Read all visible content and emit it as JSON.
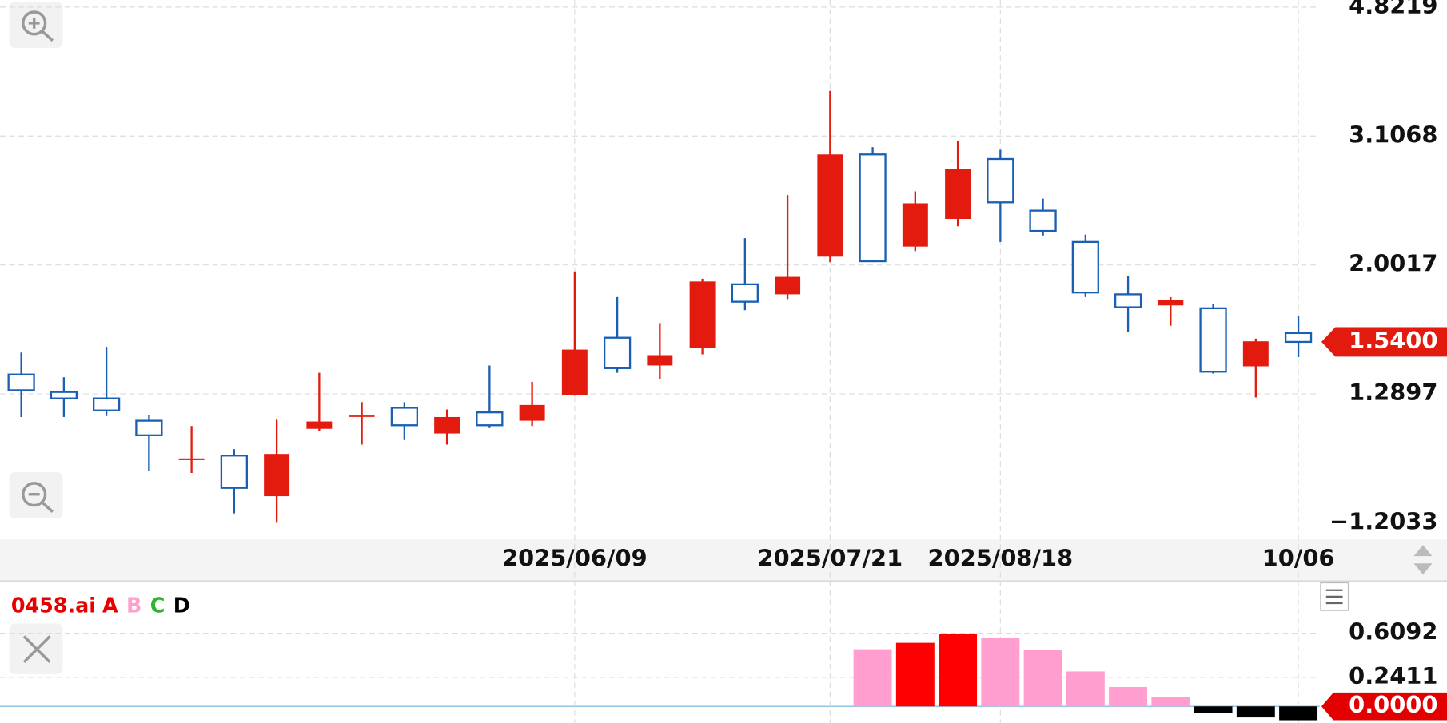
{
  "chart_data": [
    {
      "type": "candlestick",
      "categories": [
        null,
        null,
        null,
        null,
        null,
        null,
        null,
        null,
        null,
        null,
        null,
        null,
        null,
        "2025/06/09",
        null,
        null,
        null,
        null,
        null,
        "2025/07/21",
        null,
        null,
        null,
        "2025/08/18",
        null,
        null,
        null,
        null,
        null,
        null,
        "10/06"
      ],
      "open": [
        1.378,
        1.298,
        1.27,
        1.177,
        1.029,
        1.045,
        0.91,
        1.145,
        1.194,
        1.23,
        1.127,
        1.211,
        1.177,
        1.286,
        1.562,
        1.421,
        1.509,
        1.874,
        1.811,
        2.059,
        2.918,
        2.131,
        2.342,
        2.873,
        2.409,
        2.165,
        1.811,
        1.744,
        1.727,
        1.417,
        1.587
      ],
      "high": [
        1.485,
        1.365,
        1.514,
        1.2,
        1.156,
        1.068,
        1.181,
        1.386,
        1.254,
        1.254,
        1.223,
        1.421,
        1.344,
        1.958,
        1.794,
        1.642,
        1.91,
        2.193,
        2.541,
        3.624,
        2.992,
        2.573,
        3.058,
        2.964,
        2.51,
        2.22,
        1.928,
        1.794,
        1.754,
        1.557,
        1.684
      ],
      "low": [
        1.192,
        1.192,
        1.196,
        0.991,
        0.985,
        0.858,
        0.831,
        1.137,
        1.085,
        1.102,
        1.085,
        1.148,
        1.156,
        1.282,
        1.386,
        1.356,
        1.476,
        1.716,
        1.782,
        2.021,
        2.021,
        2.098,
        2.284,
        2.165,
        2.213,
        1.794,
        1.592,
        1.627,
        1.382,
        1.274,
        1.462
      ],
      "close": [
        1.306,
        1.27,
        1.219,
        1.12,
        1.035,
        0.936,
        1.051,
        1.174,
        1.198,
        1.159,
        1.192,
        1.159,
        1.242,
        1.5,
        1.408,
        1.472,
        1.892,
        1.766,
        1.922,
        2.918,
        2.027,
        2.47,
        2.774,
        2.478,
        2.248,
        1.822,
        1.733,
        1.777,
        1.391,
        1.543,
        1.54
      ],
      "up_color": "#e31b0e",
      "down_color": "#1a5fb4",
      "log_scale": true,
      "ylim": [
        0.79,
        4.94
      ],
      "yticks": [
        1.2897,
        2.0017,
        3.1068,
        4.8219
      ],
      "y_floor_label": "−1.2033",
      "grid": true,
      "last_price": {
        "value": 1.54,
        "label": "1.5400"
      }
    },
    {
      "type": "bar",
      "indicator": "0458.ai",
      "legend": [
        {
          "name": "A",
          "color": "#e60000"
        },
        {
          "name": "B",
          "color": "#ff9ecf"
        },
        {
          "name": "C",
          "color": "#2db52d"
        },
        {
          "name": "D",
          "color": "#000000"
        }
      ],
      "values": [
        null,
        null,
        null,
        null,
        null,
        null,
        null,
        null,
        null,
        null,
        null,
        null,
        null,
        null,
        null,
        null,
        null,
        null,
        null,
        null,
        0.476,
        0.529,
        0.606,
        0.568,
        0.468,
        0.291,
        0.161,
        0.077,
        -0.054,
        -0.092,
        -0.115
      ],
      "colors": [
        null,
        null,
        null,
        null,
        null,
        null,
        null,
        null,
        null,
        null,
        null,
        null,
        null,
        null,
        null,
        null,
        null,
        null,
        null,
        null,
        "#ff9ecf",
        "#ff0000",
        "#ff0000",
        "#ff9ecf",
        "#ff9ecf",
        "#ff9ecf",
        "#ff9ecf",
        "#ff9ecf",
        "#000000",
        "#000000",
        "#000000"
      ],
      "ylim": [
        -0.138,
        1.028
      ],
      "yticks": [
        {
          "value": 0,
          "label": "0.0000"
        },
        0.2411,
        0.6092
      ],
      "grid": true
    }
  ]
}
